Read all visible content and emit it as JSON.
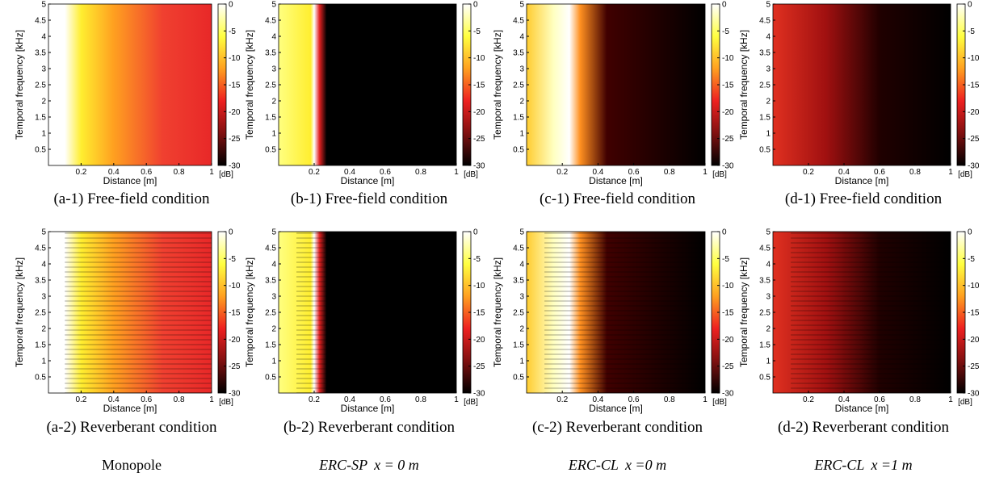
{
  "figure": {
    "x_label": "Distance [m]",
    "y_label": "Temporal frequency [kHz]",
    "xticks": [
      0.2,
      0.4,
      0.6,
      0.8,
      1
    ],
    "xlim": [
      0,
      1
    ],
    "yticks": [
      0.5,
      1,
      1.5,
      2,
      2.5,
      3,
      3.5,
      4,
      4.5,
      5
    ],
    "ylim": [
      0,
      5
    ],
    "colorbar_ticks": [
      0,
      -5,
      -10,
      -15,
      -20,
      -25,
      -30
    ],
    "colorbar_lim": [
      -30,
      0
    ],
    "colorbar_unit": "[dB]",
    "panels": [
      {
        "caption": "(a-1) Free-field condition"
      },
      {
        "caption": "(b-1) Free-field condition"
      },
      {
        "caption": "(c-1) Free-field condition"
      },
      {
        "caption": "(d-1) Free-field condition"
      },
      {
        "caption": "(a-2) Reverberant condition"
      },
      {
        "caption": "(b-2) Reverberant condition"
      },
      {
        "caption": "(c-2) Reverberant condition"
      },
      {
        "caption": "(d-2) Reverberant condition"
      }
    ],
    "column_titles": [
      {
        "method": "Monopole"
      },
      {
        "method": "ERC-SP",
        "equation": "x = 0 m"
      },
      {
        "method": "ERC-CL",
        "equation": "x =0 m"
      },
      {
        "method": "ERC-CL",
        "equation": "x =1 m"
      }
    ]
  }
}
